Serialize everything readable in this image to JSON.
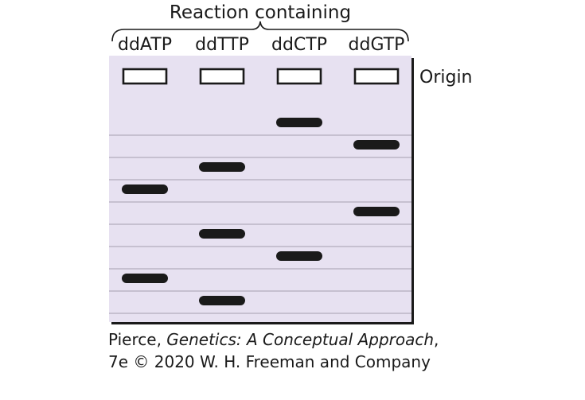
{
  "header": {
    "title": "Reaction containing"
  },
  "lanes": [
    {
      "label": "ddATP"
    },
    {
      "label": "ddTTP"
    },
    {
      "label": "ddCTP"
    },
    {
      "label": "ddGTP"
    }
  ],
  "origin_label": "Origin",
  "gel": {
    "background_color": "#e7e1f1",
    "line_color": "#a59fb0",
    "band_color": "#1a1a1a",
    "row_count": 9,
    "bands": [
      {
        "lane": 0,
        "row": 4
      },
      {
        "lane": 0,
        "row": 8
      },
      {
        "lane": 1,
        "row": 3
      },
      {
        "lane": 1,
        "row": 6
      },
      {
        "lane": 1,
        "row": 9
      },
      {
        "lane": 2,
        "row": 1
      },
      {
        "lane": 2,
        "row": 7
      },
      {
        "lane": 3,
        "row": 2
      },
      {
        "lane": 3,
        "row": 5
      }
    ]
  },
  "caption": {
    "author": "Pierce, ",
    "book_title": "Genetics: A Conceptual Approach",
    "edition": ", 7e © 2020 W. H. Freeman and Company"
  }
}
